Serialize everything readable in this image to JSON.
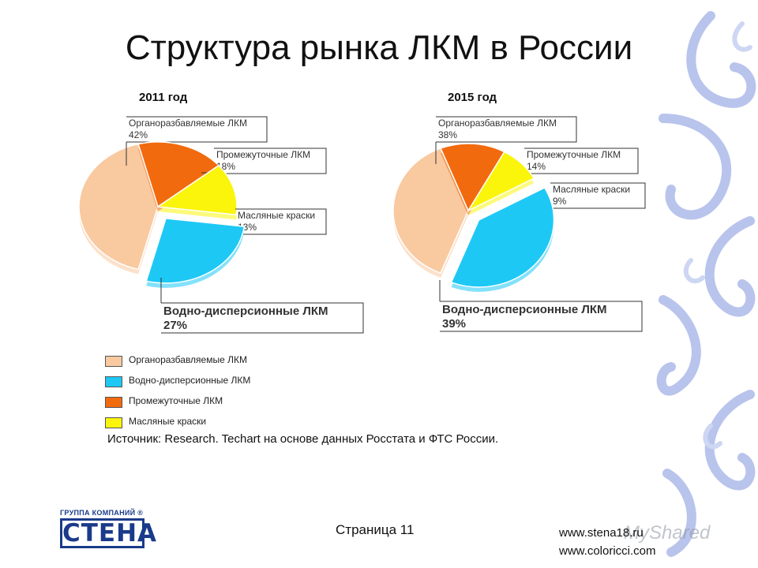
{
  "slide": {
    "title": "Структура рынка ЛКМ в России",
    "source": "Источник: Research. Techart на основе данных Росстата и ФТС России.",
    "page": "Страница 11",
    "websites": [
      "www.stena18.ru",
      "www.coloricci.com"
    ],
    "logo": {
      "caption": "ГРУППА КОМПАНИЙ ®",
      "name": "СТЕНА"
    },
    "watermark": "MyShared"
  },
  "legend": [
    {
      "label": "Органоразбавляемые ЛКМ",
      "color": "#F9C9A0"
    },
    {
      "label": "Водно-дисперсионные ЛКМ",
      "color": "#1EC8F5"
    },
    {
      "label": "Промежуточные ЛКМ",
      "color": "#F26A0E"
    },
    {
      "label": "Масляные краски",
      "color": "#FAF50B"
    }
  ],
  "chart_data": [
    {
      "type": "pie",
      "title": "2011 год",
      "slices": [
        {
          "name": "Органоразбавляемые ЛКМ",
          "value": 42,
          "label": "42%",
          "color": "#F9C9A0",
          "exploded": false
        },
        {
          "name": "Промежуточные ЛКМ",
          "value": 18,
          "label": "18%",
          "color": "#F26A0E",
          "exploded": false
        },
        {
          "name": "Масляные краски",
          "value": 13,
          "label": "13%",
          "color": "#FAF50B",
          "exploded": false
        },
        {
          "name": "Водно-дисперсионные ЛКМ",
          "value": 27,
          "label": "27%",
          "color": "#1EC8F5",
          "exploded": true
        }
      ]
    },
    {
      "type": "pie",
      "title": "2015 год",
      "slices": [
        {
          "name": "Органоразбавляемые ЛКМ",
          "value": 38,
          "label": "38%",
          "color": "#F9C9A0",
          "exploded": false
        },
        {
          "name": "Промежуточные ЛКМ",
          "value": 14,
          "label": "14%",
          "color": "#F26A0E",
          "exploded": false
        },
        {
          "name": "Масляные краски",
          "value": 9,
          "label": "9%",
          "color": "#FAF50B",
          "exploded": false
        },
        {
          "name": "Водно-дисперсионные ЛКМ",
          "value": 39,
          "label": "39%",
          "color": "#1EC8F5",
          "exploded": true
        }
      ]
    }
  ]
}
